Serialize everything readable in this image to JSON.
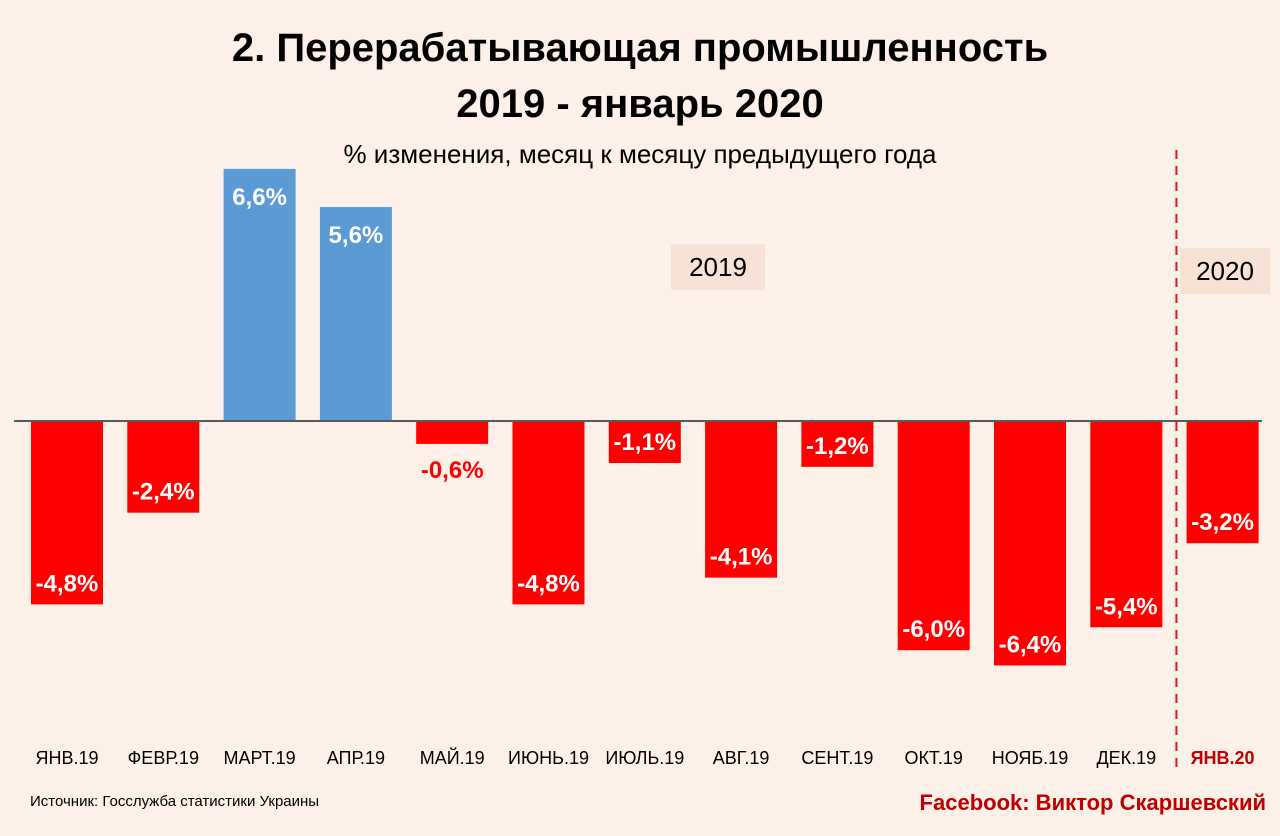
{
  "header": {
    "title_line1": "2. Перерабатывающая промышленность",
    "title_line2": "2019 - январь 2020",
    "subtitle": "% изменения, месяц к месяцу предыдущего года"
  },
  "annotations": {
    "year_2019": "2019",
    "year_2020": "2020"
  },
  "footer": {
    "source": "Источник: Госслужба статистики Украины",
    "author": "Facebook: Виктор Скаршевский"
  },
  "colors": {
    "positive": "#5b9bd5",
    "negative": "#ff0000",
    "highlight_label": "#c00000",
    "background": "#fcf0e8",
    "year_box": "#f8e2d6"
  },
  "chart_data": {
    "type": "bar",
    "title": "2. Перерабатывающая промышленность 2019 - январь 2020",
    "subtitle": "% изменения, месяц к месяцу предыдущего года",
    "categories": [
      "ЯНВ.19",
      "ФЕВР.19",
      "МАРТ.19",
      "АПР.19",
      "МАЙ.19",
      "ИЮНЬ.19",
      "ИЮЛЬ.19",
      "АВГ.19",
      "СЕНТ.19",
      "ОКТ.19",
      "НОЯБ.19",
      "ДЕК.19",
      "ЯНВ.20"
    ],
    "values": [
      -4.8,
      -2.4,
      6.6,
      5.6,
      -0.6,
      -4.8,
      -1.1,
      -4.1,
      -1.2,
      -6.0,
      -6.4,
      -5.4,
      -3.2
    ],
    "data_labels": [
      "-4,8%",
      "-2,4%",
      "6,6%",
      "5,6%",
      "-0,6%",
      "-4,8%",
      "-1,1%",
      "-4,1%",
      "-1,2%",
      "-6,0%",
      "-6,4%",
      "-5,4%",
      "-3,2%"
    ],
    "highlighted_category": "ЯНВ.20",
    "divider_before": "ЯНВ.20",
    "xlabel": "",
    "ylabel": "",
    "ylim": [
      -6.4,
      6.6
    ],
    "grid": false,
    "legend": "none"
  }
}
